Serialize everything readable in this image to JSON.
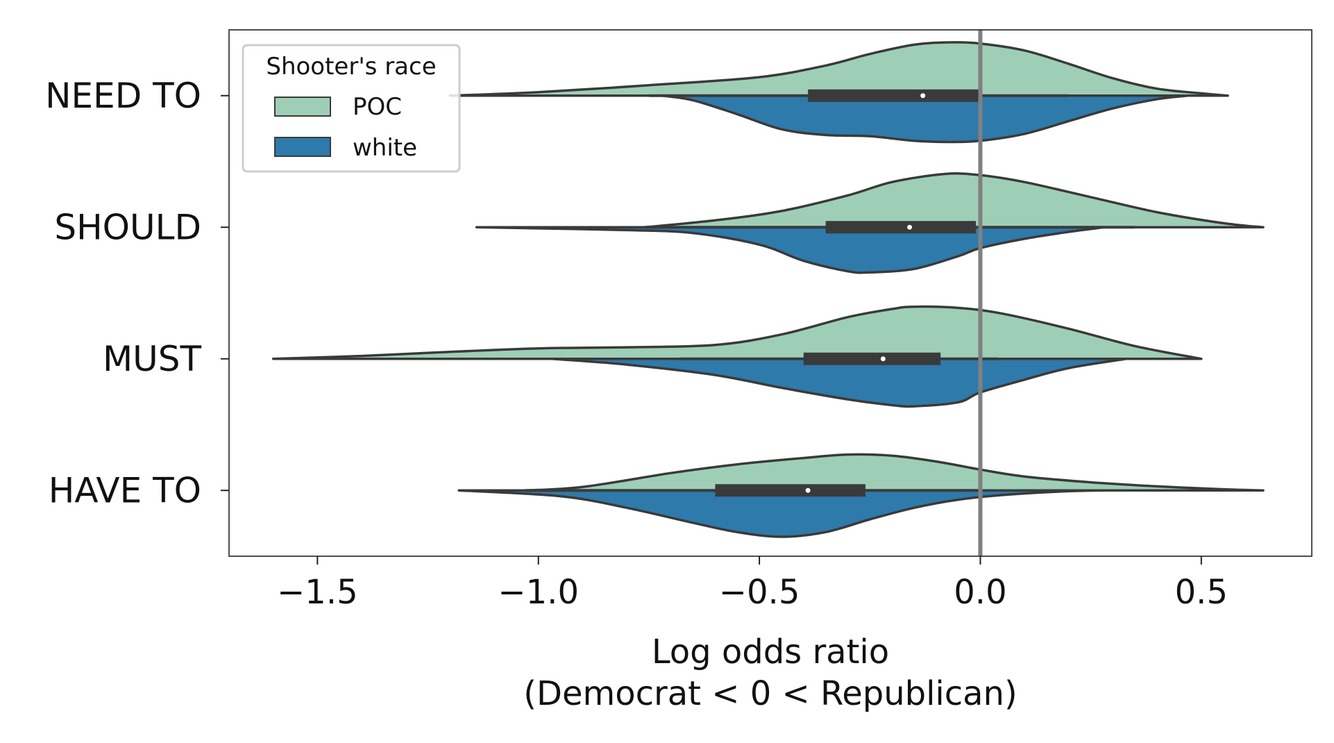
{
  "chart_data": {
    "type": "violin",
    "split": true,
    "orientation": "horizontal",
    "title": "",
    "xlabel_line1": "Log odds ratio",
    "xlabel_line2": "(Democrat < 0 < Republican)",
    "xlim": [
      -1.7,
      0.75
    ],
    "xticks": [
      -1.5,
      -1.0,
      -0.5,
      0.0,
      0.5
    ],
    "xtick_labels": [
      "−1.5",
      "−1.0",
      "−0.5",
      "0.0",
      "0.5"
    ],
    "reference_line_x": 0.0,
    "categories": [
      "NEED TO",
      "SHOULD",
      "MUST",
      "HAVE TO"
    ],
    "legend": {
      "title": "Shooter's race",
      "placement": "top-left",
      "entries": [
        {
          "label": "POC",
          "color": "#9ecfb6"
        },
        {
          "label": "white",
          "color": "#2e7aab"
        }
      ]
    },
    "series": [
      {
        "name": "POC",
        "side": "upper",
        "color": "#9ecfb6",
        "violins": [
          {
            "category": "NEED TO",
            "min": -1.2,
            "max": 0.56,
            "profile": [
              [
                -1.2,
                0.0
              ],
              [
                -1.0,
                0.06
              ],
              [
                -0.75,
                0.18
              ],
              [
                -0.5,
                0.32
              ],
              [
                -0.35,
                0.52
              ],
              [
                -0.25,
                0.72
              ],
              [
                -0.15,
                0.88
              ],
              [
                -0.07,
                0.92
              ],
              [
                0.0,
                0.9
              ],
              [
                0.1,
                0.78
              ],
              [
                0.2,
                0.55
              ],
              [
                0.3,
                0.3
              ],
              [
                0.4,
                0.12
              ],
              [
                0.5,
                0.04
              ],
              [
                0.56,
                0.0
              ]
            ]
          },
          {
            "category": "SHOULD",
            "min": -0.76,
            "max": 0.64,
            "profile": [
              [
                -0.76,
                0.0
              ],
              [
                -0.6,
                0.12
              ],
              [
                -0.45,
                0.28
              ],
              [
                -0.3,
                0.55
              ],
              [
                -0.2,
                0.78
              ],
              [
                -0.08,
                0.92
              ],
              [
                0.0,
                0.9
              ],
              [
                0.1,
                0.78
              ],
              [
                0.25,
                0.52
              ],
              [
                0.4,
                0.26
              ],
              [
                0.55,
                0.07
              ],
              [
                0.64,
                0.0
              ]
            ]
          },
          {
            "category": "MUST",
            "min": -1.6,
            "max": 0.5,
            "profile": [
              [
                -1.6,
                0.0
              ],
              [
                -1.4,
                0.05
              ],
              [
                -1.2,
                0.12
              ],
              [
                -1.0,
                0.18
              ],
              [
                -0.8,
                0.2
              ],
              [
                -0.6,
                0.24
              ],
              [
                -0.45,
                0.42
              ],
              [
                -0.3,
                0.72
              ],
              [
                -0.2,
                0.86
              ],
              [
                -0.15,
                0.9
              ],
              [
                -0.05,
                0.88
              ],
              [
                0.05,
                0.78
              ],
              [
                0.2,
                0.52
              ],
              [
                0.35,
                0.22
              ],
              [
                0.5,
                0.0
              ]
            ]
          },
          {
            "category": "HAVE TO",
            "min": -1.03,
            "max": 0.64,
            "profile": [
              [
                -1.03,
                0.0
              ],
              [
                -0.9,
                0.06
              ],
              [
                -0.7,
                0.3
              ],
              [
                -0.55,
                0.45
              ],
              [
                -0.4,
                0.56
              ],
              [
                -0.3,
                0.62
              ],
              [
                -0.2,
                0.6
              ],
              [
                -0.1,
                0.5
              ],
              [
                0.0,
                0.36
              ],
              [
                0.1,
                0.24
              ],
              [
                0.25,
                0.14
              ],
              [
                0.4,
                0.07
              ],
              [
                0.55,
                0.02
              ],
              [
                0.64,
                0.0
              ]
            ]
          }
        ]
      },
      {
        "name": "white",
        "side": "lower",
        "color": "#2e7aab",
        "violins": [
          {
            "category": "NEED TO",
            "min": -0.72,
            "max": 0.47,
            "profile": [
              [
                -0.72,
                0.0
              ],
              [
                -0.65,
                0.08
              ],
              [
                -0.55,
                0.32
              ],
              [
                -0.45,
                0.58
              ],
              [
                -0.35,
                0.68
              ],
              [
                -0.25,
                0.7
              ],
              [
                -0.15,
                0.78
              ],
              [
                -0.07,
                0.8
              ],
              [
                0.0,
                0.78
              ],
              [
                0.1,
                0.66
              ],
              [
                0.2,
                0.44
              ],
              [
                0.3,
                0.22
              ],
              [
                0.4,
                0.06
              ],
              [
                0.47,
                0.0
              ]
            ]
          },
          {
            "category": "SHOULD",
            "min": -1.14,
            "max": 0.28,
            "profile": [
              [
                -1.14,
                0.0
              ],
              [
                -1.0,
                0.02
              ],
              [
                -0.8,
                0.05
              ],
              [
                -0.65,
                0.1
              ],
              [
                -0.5,
                0.3
              ],
              [
                -0.4,
                0.58
              ],
              [
                -0.3,
                0.76
              ],
              [
                -0.25,
                0.78
              ],
              [
                -0.15,
                0.72
              ],
              [
                -0.05,
                0.5
              ],
              [
                0.0,
                0.36
              ],
              [
                0.1,
                0.2
              ],
              [
                0.2,
                0.08
              ],
              [
                0.28,
                0.0
              ]
            ]
          },
          {
            "category": "MUST",
            "min": -0.97,
            "max": 0.33,
            "profile": [
              [
                -0.97,
                0.0
              ],
              [
                -0.8,
                0.1
              ],
              [
                -0.6,
                0.28
              ],
              [
                -0.45,
                0.5
              ],
              [
                -0.3,
                0.7
              ],
              [
                -0.2,
                0.8
              ],
              [
                -0.15,
                0.82
              ],
              [
                -0.05,
                0.75
              ],
              [
                0.0,
                0.58
              ],
              [
                0.1,
                0.36
              ],
              [
                0.2,
                0.16
              ],
              [
                0.33,
                0.0
              ]
            ]
          },
          {
            "category": "HAVE TO",
            "min": -1.18,
            "max": 0.28,
            "profile": [
              [
                -1.18,
                0.0
              ],
              [
                -0.95,
                0.1
              ],
              [
                -0.8,
                0.3
              ],
              [
                -0.65,
                0.56
              ],
              [
                -0.55,
                0.72
              ],
              [
                -0.45,
                0.8
              ],
              [
                -0.35,
                0.72
              ],
              [
                -0.25,
                0.5
              ],
              [
                -0.15,
                0.3
              ],
              [
                -0.05,
                0.16
              ],
              [
                0.05,
                0.08
              ],
              [
                0.18,
                0.02
              ],
              [
                0.28,
                0.0
              ]
            ]
          }
        ]
      }
    ],
    "box": [
      {
        "category": "NEED TO",
        "q1": -0.39,
        "q3": 0.0,
        "median": -0.13,
        "whisker_low": -0.75,
        "whisker_high": 0.2
      },
      {
        "category": "SHOULD",
        "q1": -0.35,
        "q3": -0.01,
        "median": -0.16,
        "whisker_low": -0.76,
        "whisker_high": 0.35
      },
      {
        "category": "MUST",
        "q1": -0.4,
        "q3": -0.09,
        "median": -0.22,
        "whisker_low": -0.68,
        "whisker_high": 0.04
      },
      {
        "category": "HAVE TO",
        "q1": -0.6,
        "q3": -0.26,
        "median": -0.39,
        "whisker_low": -1.03,
        "whisker_high": 0.0
      }
    ]
  }
}
